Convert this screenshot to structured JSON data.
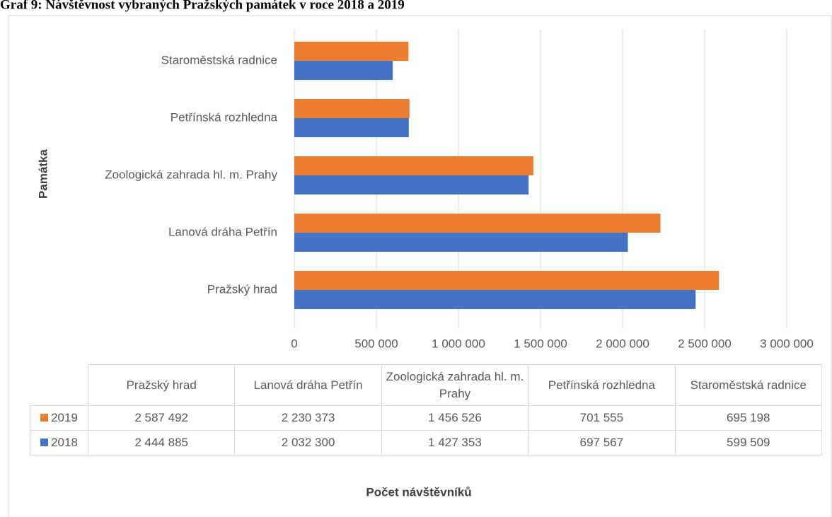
{
  "chart_data": {
    "type": "bar",
    "orientation": "horizontal",
    "title": "Graf 9: Návštěvnost vybraných Pražských památek v roce 2018 a 2019",
    "x_label": "Počet návštěvníků",
    "y_label": "Památka",
    "categories": [
      "Pražský hrad",
      "Lanová dráha Petřín",
      "Zoologická zahrada hl. m. Prahy",
      "Petřínská rozhledna",
      "Staroměstská radnice"
    ],
    "series": [
      {
        "name": "2019",
        "color": "#ed7d31",
        "values": [
          2587492,
          2230373,
          1456526,
          701555,
          695198
        ],
        "value_labels": [
          "2 587 492",
          "2 230 373",
          "1 456 526",
          "701 555",
          "695 198"
        ]
      },
      {
        "name": "2018",
        "color": "#4472c4",
        "values": [
          2444885,
          2032300,
          1427353,
          697567,
          599509
        ],
        "value_labels": [
          "2 444 885",
          "2 032 300",
          "1 427 353",
          "697 567",
          "599 509"
        ]
      }
    ],
    "xlim": [
      0,
      3000000
    ],
    "xticks": [
      0,
      {
        "value": 500000,
        "label": "500 000"
      },
      {
        "value": 1000000,
        "label": "1 000 000"
      },
      {
        "value": 1500000,
        "label": "1 500 000"
      },
      {
        "value": 2000000,
        "label": "2 000 000"
      },
      {
        "value": 2500000,
        "label": "2 500 000"
      },
      {
        "value": 3000000,
        "label": "3 000 000"
      }
    ],
    "grid": true
  }
}
